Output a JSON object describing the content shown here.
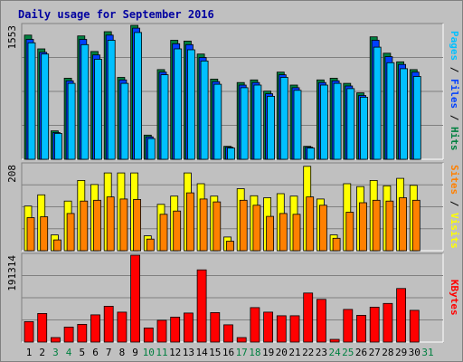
{
  "chart_data": {
    "type": "bar",
    "title": "Daily usage for September 2016",
    "days": [
      1,
      2,
      3,
      4,
      5,
      6,
      7,
      8,
      9,
      10,
      11,
      12,
      13,
      14,
      15,
      16,
      17,
      18,
      19,
      20,
      21,
      22,
      23,
      24,
      25,
      26,
      27,
      28,
      29,
      30,
      31
    ],
    "weekend_days": [
      3,
      4,
      10,
      11,
      17,
      18,
      24,
      25,
      31
    ],
    "panels": [
      {
        "id": "hits-files-pages",
        "scale_max_label": "1553",
        "ylim": [
          0,
          1553
        ],
        "series": [
          {
            "name": "Hits",
            "color": "#008040",
            "values": [
              1440,
              1280,
              330,
              940,
              1430,
              1250,
              1480,
              950,
              1553,
              280,
              1040,
              1380,
              1370,
              1220,
              930,
              150,
              890,
              920,
              790,
              1010,
              860,
              150,
              920,
              940,
              880,
              770,
              1420,
              1230,
              1130,
              1040,
              0
            ]
          },
          {
            "name": "Files",
            "color": "#0040ff",
            "values": [
              1390,
              1240,
              310,
              910,
              1390,
              1210,
              1440,
              920,
              1520,
              260,
              1010,
              1340,
              1330,
              1180,
              900,
              140,
              860,
              890,
              760,
              980,
              830,
              140,
              890,
              910,
              850,
              740,
              1380,
              1190,
              1100,
              1010,
              0
            ]
          },
          {
            "name": "Pages",
            "color": "#00c0ff",
            "values": [
              1350,
              1220,
              300,
              880,
              1330,
              1160,
              1380,
              880,
              1470,
              240,
              980,
              1280,
              1270,
              1140,
              870,
              130,
              830,
              860,
              730,
              950,
              800,
              130,
              860,
              880,
              820,
              720,
              1300,
              1120,
              1050,
              960,
              0
            ]
          }
        ]
      },
      {
        "id": "visits-sites",
        "scale_max_label": "208",
        "ylim": [
          0,
          208
        ],
        "series": [
          {
            "name": "Visits",
            "color": "#ffff00",
            "values": [
              108,
              135,
              38,
              120,
              170,
              160,
              188,
              188,
              188,
              36,
              112,
              132,
              188,
              162,
              132,
              33,
              150,
              133,
              128,
              138,
              132,
              204,
              125,
              38,
              162,
              155,
              170,
              157,
              175,
              158,
              0
            ]
          },
          {
            "name": "Sites",
            "color": "#ff8000",
            "values": [
              80,
              82,
              26,
              90,
              120,
              122,
              130,
              125,
              124,
              28,
              88,
              96,
              140,
              125,
              118,
              23,
              122,
              110,
              83,
              90,
              88,
              130,
              110,
              30,
              93,
              116,
              122,
              120,
              128,
              122,
              0
            ]
          }
        ]
      },
      {
        "id": "kbytes",
        "scale_max_label": "191314",
        "ylim": [
          0,
          191314
        ],
        "series": [
          {
            "name": "KBytes",
            "color": "#ff0000",
            "values": [
              45000,
              63000,
              10000,
              33000,
              39000,
              60000,
              79000,
              66000,
              191314,
              31000,
              48000,
              55000,
              64000,
              159000,
              65000,
              38000,
              10000,
              76000,
              66000,
              58000,
              58000,
              108000,
              94000,
              6000,
              72000,
              59000,
              77000,
              85000,
              118000,
              70000,
              0
            ]
          }
        ]
      }
    ]
  }
}
